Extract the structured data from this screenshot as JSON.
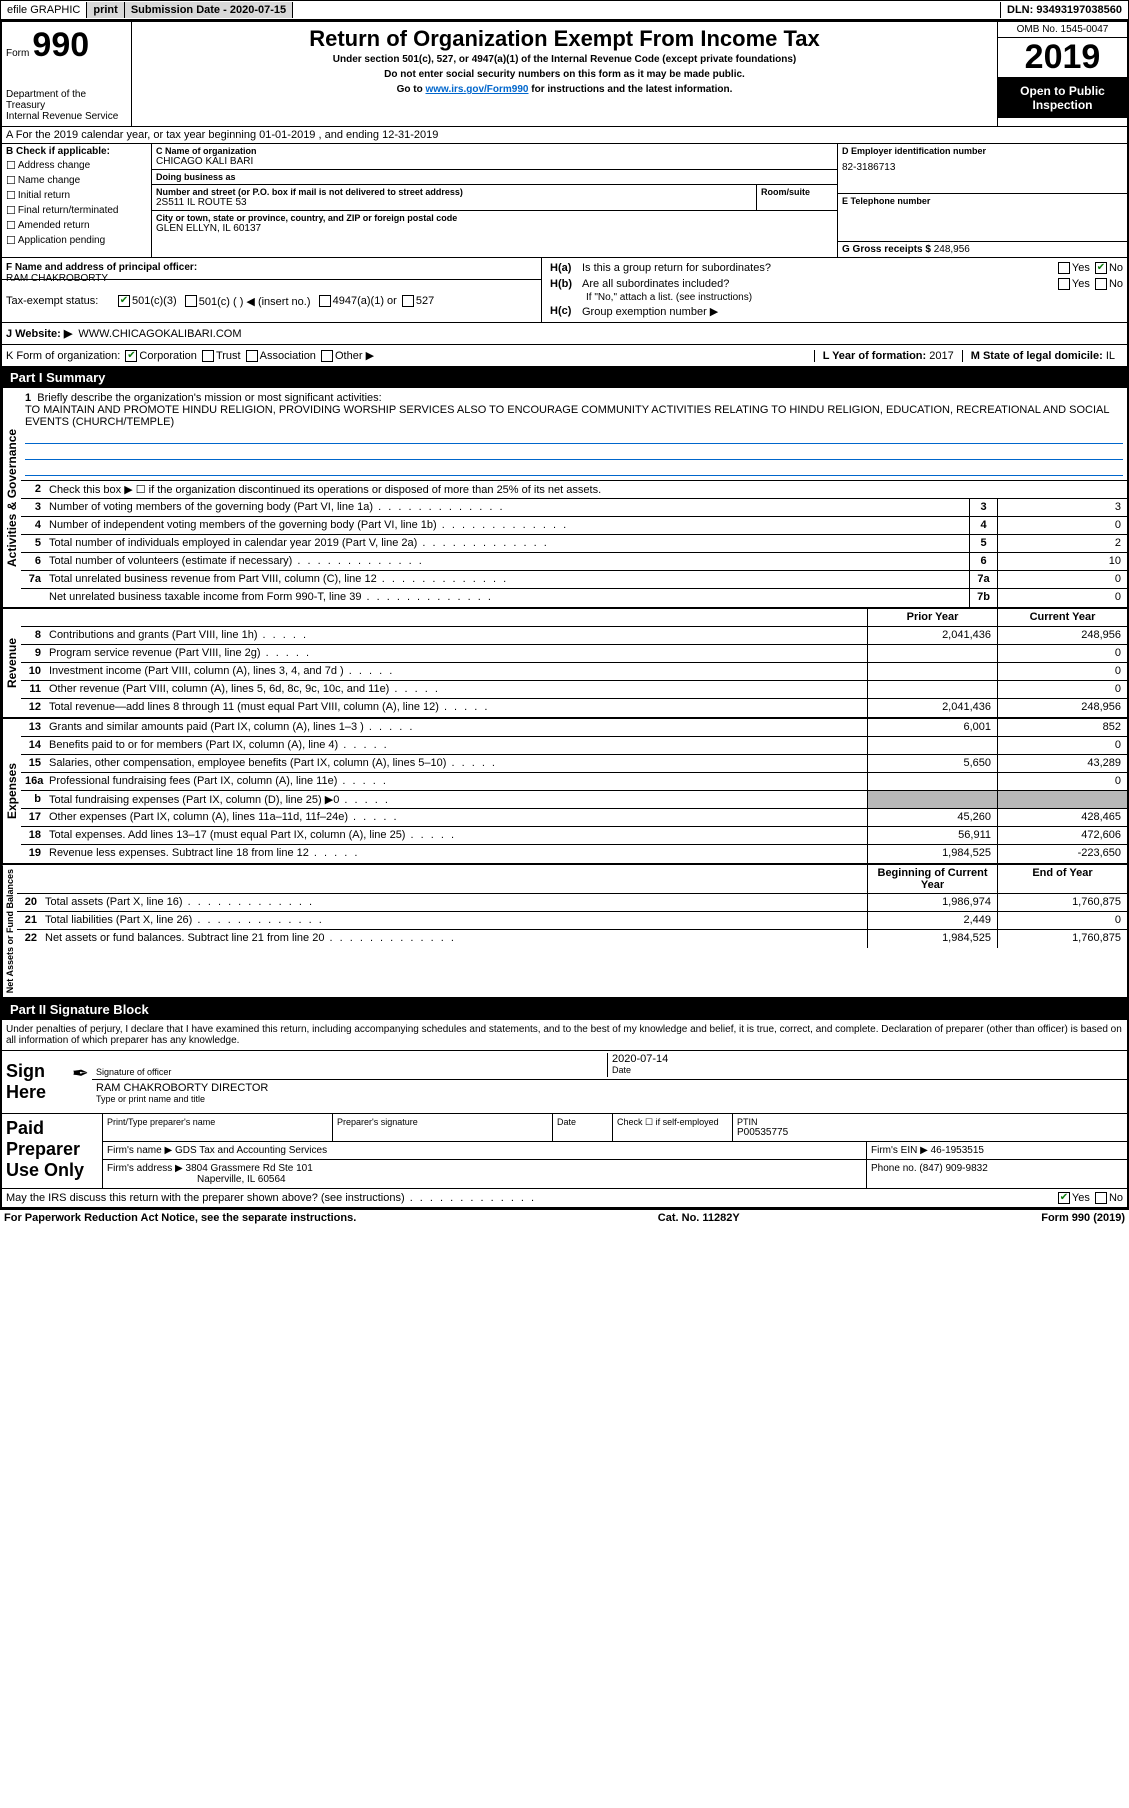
{
  "topbar": {
    "efile": "efile GRAPHIC",
    "print": "print",
    "sub_date_label": "Submission Date - ",
    "sub_date": "2020-07-15",
    "dln_label": "DLN: ",
    "dln": "93493197038560"
  },
  "header": {
    "form_label": "Form",
    "form_number": "990",
    "dept": "Department of the Treasury\nInternal Revenue Service",
    "title": "Return of Organization Exempt From Income Tax",
    "subtitle": "Under section 501(c), 527, or 4947(a)(1) of the Internal Revenue Code (except private foundations)",
    "instr1": "Do not enter social security numbers on this form as it may be made public.",
    "instr2_a": "Go to ",
    "instr2_link": "www.irs.gov/Form990",
    "instr2_b": " for instructions and the latest information.",
    "omb": "OMB No. 1545-0047",
    "year": "2019",
    "open_public": "Open to Public Inspection"
  },
  "row_a": "A For the 2019 calendar year, or tax year beginning 01-01-2019    , and ending 12-31-2019",
  "section_b": {
    "label": "B Check if applicable:",
    "items": [
      "Address change",
      "Name change",
      "Initial return",
      "Final return/terminated",
      "Amended return",
      "Application pending"
    ]
  },
  "section_c": {
    "name_label": "C Name of organization",
    "name": "CHICAGO KALI BARI",
    "dba_label": "Doing business as",
    "dba": "",
    "addr_label": "Number and street (or P.O. box if mail is not delivered to street address)",
    "room_label": "Room/suite",
    "addr": "2S511 IL ROUTE 53",
    "city_label": "City or town, state or province, country, and ZIP or foreign postal code",
    "city": "GLEN ELLYN, IL  60137"
  },
  "section_d": {
    "label": "D Employer identification number",
    "value": "82-3186713"
  },
  "section_e": {
    "label": "E Telephone number",
    "value": ""
  },
  "section_g": {
    "label": "G Gross receipts $ ",
    "value": "248,956"
  },
  "section_f": {
    "label": "F  Name and address of principal officer:",
    "value": "RAM CHAKROBORTY"
  },
  "section_h": {
    "ha": "Is this a group return for subordinates?",
    "hb": "Are all subordinates included?",
    "hb_note": "If \"No,\" attach a list. (see instructions)",
    "hc": "Group exemption number ▶"
  },
  "tax_exempt": {
    "label": "Tax-exempt status:",
    "opt1": "501(c)(3)",
    "opt2": "501(c) (   ) ◀ (insert no.)",
    "opt3": "4947(a)(1) or",
    "opt4": "527"
  },
  "website": {
    "label": "J    Website: ▶",
    "value": "WWW.CHICAGOKALIBARI.COM"
  },
  "k_org": {
    "label": "K Form of organization:",
    "opts": [
      "Corporation",
      "Trust",
      "Association",
      "Other ▶"
    ],
    "l_label": "L Year of formation: ",
    "l_value": "2017",
    "m_label": "M State of legal domicile: ",
    "m_value": "IL"
  },
  "part1": {
    "header": "Part I      Summary",
    "line1_label": "Briefly describe the organization's mission or most significant activities:",
    "line1_text": "TO MAINTAIN AND PROMOTE HINDU RELIGION, PROVIDING WORSHIP SERVICES ALSO TO ENCOURAGE COMMUNITY ACTIVITIES RELATING TO HINDU RELIGION, EDUCATION, RECREATIONAL AND SOCIAL EVENTS (CHURCH/TEMPLE)",
    "line2": "Check this box ▶ ☐  if the organization discontinued its operations or disposed of more than 25% of its net assets.",
    "governance_label": "Activities & Governance",
    "revenue_label": "Revenue",
    "expenses_label": "Expenses",
    "net_label": "Net Assets or Fund Balances",
    "rows_gov": [
      {
        "n": "3",
        "t": "Number of voting members of the governing body (Part VI, line 1a)",
        "box": "3",
        "v": "3"
      },
      {
        "n": "4",
        "t": "Number of independent voting members of the governing body (Part VI, line 1b)",
        "box": "4",
        "v": "0"
      },
      {
        "n": "5",
        "t": "Total number of individuals employed in calendar year 2019 (Part V, line 2a)",
        "box": "5",
        "v": "2"
      },
      {
        "n": "6",
        "t": "Total number of volunteers (estimate if necessary)",
        "box": "6",
        "v": "10"
      },
      {
        "n": "7a",
        "t": "Total unrelated business revenue from Part VIII, column (C), line 12",
        "box": "7a",
        "v": "0"
      },
      {
        "n": "",
        "t": "Net unrelated business taxable income from Form 990-T, line 39",
        "box": "7b",
        "v": "0"
      }
    ],
    "col_prior": "Prior Year",
    "col_current": "Current Year",
    "rows_rev": [
      {
        "n": "8",
        "t": "Contributions and grants (Part VIII, line 1h)",
        "p": "2,041,436",
        "c": "248,956"
      },
      {
        "n": "9",
        "t": "Program service revenue (Part VIII, line 2g)",
        "p": "",
        "c": "0"
      },
      {
        "n": "10",
        "t": "Investment income (Part VIII, column (A), lines 3, 4, and 7d )",
        "p": "",
        "c": "0"
      },
      {
        "n": "11",
        "t": "Other revenue (Part VIII, column (A), lines 5, 6d, 8c, 9c, 10c, and 11e)",
        "p": "",
        "c": "0"
      },
      {
        "n": "12",
        "t": "Total revenue—add lines 8 through 11 (must equal Part VIII, column (A), line 12)",
        "p": "2,041,436",
        "c": "248,956"
      }
    ],
    "rows_exp": [
      {
        "n": "13",
        "t": "Grants and similar amounts paid (Part IX, column (A), lines 1–3 )",
        "p": "6,001",
        "c": "852"
      },
      {
        "n": "14",
        "t": "Benefits paid to or for members (Part IX, column (A), line 4)",
        "p": "",
        "c": "0"
      },
      {
        "n": "15",
        "t": "Salaries, other compensation, employee benefits (Part IX, column (A), lines 5–10)",
        "p": "5,650",
        "c": "43,289"
      },
      {
        "n": "16a",
        "t": "Professional fundraising fees (Part IX, column (A), line 11e)",
        "p": "",
        "c": "0"
      },
      {
        "n": "b",
        "t": "Total fundraising expenses (Part IX, column (D), line 25) ▶0",
        "p": "shaded",
        "c": "shaded"
      },
      {
        "n": "17",
        "t": "Other expenses (Part IX, column (A), lines 11a–11d, 11f–24e)",
        "p": "45,260",
        "c": "428,465"
      },
      {
        "n": "18",
        "t": "Total expenses. Add lines 13–17 (must equal Part IX, column (A), line 25)",
        "p": "56,911",
        "c": "472,606"
      },
      {
        "n": "19",
        "t": "Revenue less expenses. Subtract line 18 from line 12",
        "p": "1,984,525",
        "c": "-223,650"
      }
    ],
    "col_begin": "Beginning of Current Year",
    "col_end": "End of Year",
    "rows_net": [
      {
        "n": "20",
        "t": "Total assets (Part X, line 16)",
        "p": "1,986,974",
        "c": "1,760,875"
      },
      {
        "n": "21",
        "t": "Total liabilities (Part X, line 26)",
        "p": "2,449",
        "c": "0"
      },
      {
        "n": "22",
        "t": "Net assets or fund balances. Subtract line 21 from line 20",
        "p": "1,984,525",
        "c": "1,760,875"
      }
    ]
  },
  "part2": {
    "header": "Part II     Signature Block",
    "declaration": "Under penalties of perjury, I declare that I have examined this return, including accompanying schedules and statements, and to the best of my knowledge and belief, it is true, correct, and complete. Declaration of preparer (other than officer) is based on all information of which preparer has any knowledge.",
    "sign_here": "Sign Here",
    "sig_officer": "Signature of officer",
    "date_label": "Date",
    "date_value": "2020-07-14",
    "name_title": "RAM CHAKROBORTY DIRECTOR",
    "name_title_label": "Type or print name and title",
    "paid_label": "Paid Preparer Use Only",
    "prep_name_label": "Print/Type preparer's name",
    "prep_name": "",
    "prep_sig_label": "Preparer's signature",
    "prep_date_label": "Date",
    "check_self": "Check ☐ if self-employed",
    "ptin_label": "PTIN",
    "ptin": "P00535775",
    "firm_name_label": "Firm's name    ▶ ",
    "firm_name": "GDS Tax and Accounting Services",
    "firm_ein_label": "Firm's EIN ▶ ",
    "firm_ein": "46-1953515",
    "firm_addr_label": "Firm's address ▶ ",
    "firm_addr1": "3804 Grassmere Rd Ste 101",
    "firm_addr2": "Naperville, IL  60564",
    "phone_label": "Phone no. ",
    "phone": "(847) 909-9832",
    "discuss": "May the IRS discuss this return with the preparer shown above? (see instructions)"
  },
  "footer": {
    "left": "For Paperwork Reduction Act Notice, see the separate instructions.",
    "center": "Cat. No. 11282Y",
    "right": "Form 990 (2019)"
  },
  "colors": {
    "link": "#0066cc",
    "check_green": "#0a7a0a",
    "shaded": "#b8b8b8",
    "black": "#000000",
    "btn_gray": "#d8d8d8"
  }
}
